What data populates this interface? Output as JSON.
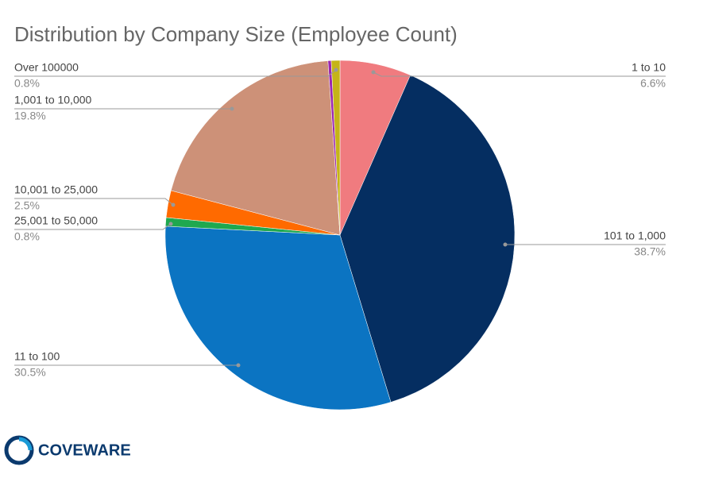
{
  "chart_data": {
    "type": "pie",
    "title": "Distribution by Company Size (Employee Count)",
    "categories": [
      "1 to 10",
      "101 to 1,000",
      "11 to 100",
      "25,001 to 50,000",
      "10,001 to 25,000",
      "1,001 to 10,000",
      null,
      "Over 100000"
    ],
    "values": [
      6.6,
      38.7,
      30.5,
      0.8,
      2.5,
      19.8,
      0.3,
      0.8
    ],
    "value_labels": [
      "6.6%",
      "38.7%",
      "30.5%",
      "0.8%",
      "2.5%",
      "19.8%",
      null,
      "0.8%"
    ],
    "colors": [
      "#f07b7f",
      "#052e61",
      "#0b74c2",
      "#1fa84f",
      "#ff6a00",
      "#cd9178",
      "#9b27b0",
      "#c5b418"
    ]
  },
  "logo": "COVEWARE"
}
